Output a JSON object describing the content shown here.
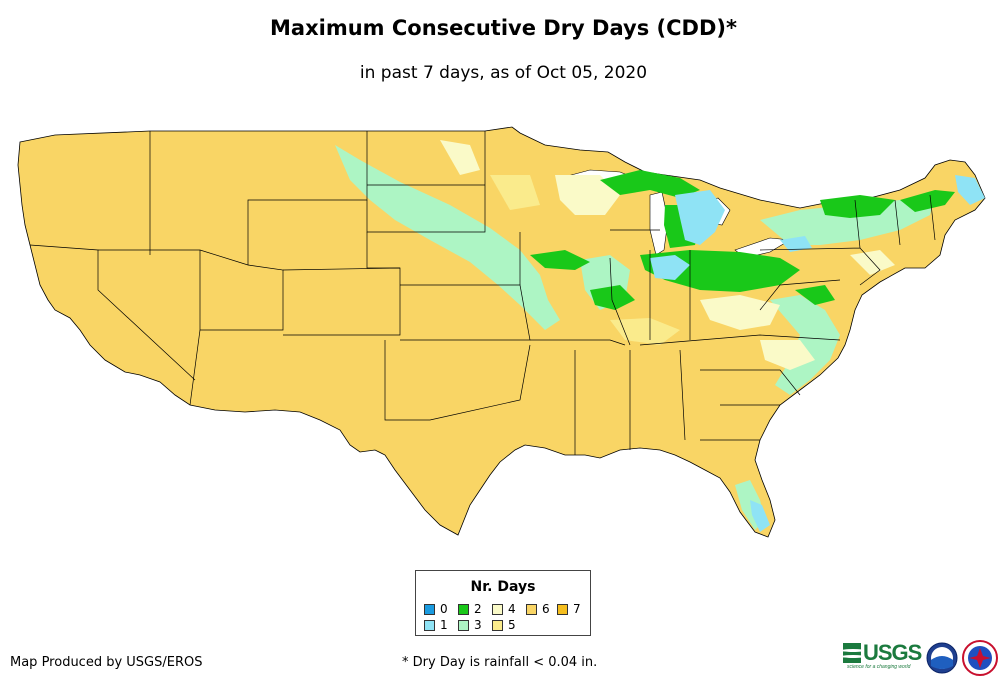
{
  "title": "Maximum Consecutive Dry Days (CDD)*",
  "subtitle": "in past 7 days, as of Oct 05, 2020",
  "legend": {
    "title": "Nr. Days",
    "items": [
      {
        "label": "0",
        "color": "#1a9be0"
      },
      {
        "label": "1",
        "color": "#8fe3f5"
      },
      {
        "label": "2",
        "color": "#19c819"
      },
      {
        "label": "3",
        "color": "#adf5c4"
      },
      {
        "label": "4",
        "color": "#fafac8"
      },
      {
        "label": "5",
        "color": "#faeb8c"
      },
      {
        "label": "6",
        "color": "#f9d565"
      },
      {
        "label": "7",
        "color": "#f5be1e"
      }
    ]
  },
  "credit": "Map Produced by USGS/EROS",
  "footnote": "* Dry Day is rainfall < 0.04 in.",
  "logos": {
    "usgs": "USGS",
    "usgs_tagline": "science for a changing world",
    "noaa": "noaa",
    "nws": "NWS"
  },
  "map": {
    "region": "Contiguous United States",
    "base_color": "#f9d565",
    "border_color": "#000000",
    "dominant_class": "6"
  }
}
